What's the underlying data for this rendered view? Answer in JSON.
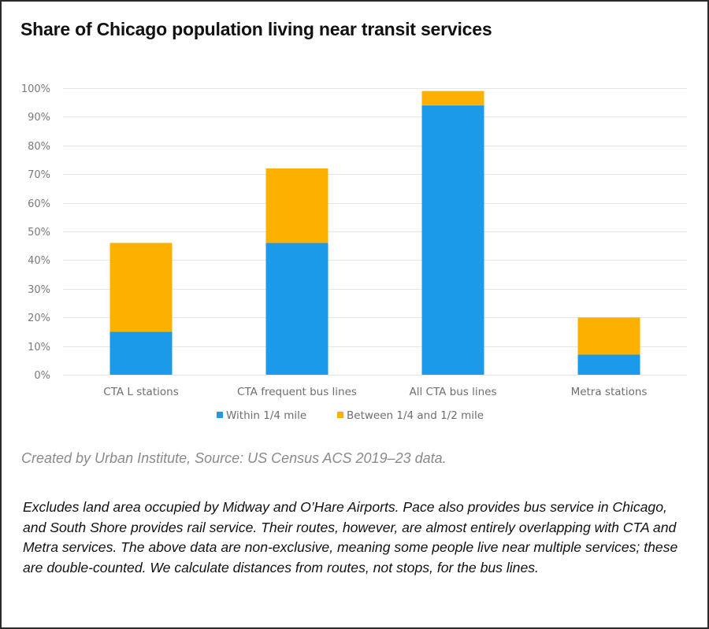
{
  "title": "Share of Chicago population living near transit services",
  "source": "Created by Urban Institute, Source: US Census ACS 2019–23 data.",
  "note": "Excludes land area occupied by Midway and O’Hare Airports. Pace also provides bus service in Chicago, and South Shore provides rail service. Their routes, however, are almost entirely overlapping with CTA and Metra services. The above data are non-exclusive, meaning some people live near multiple services; these are double-counted. We calculate distances from routes, not stops, for the bus lines.",
  "colors": {
    "within": "#1a9ae8",
    "between": "#fcb100",
    "grid": "#e6e6e6"
  },
  "chart_data": {
    "type": "bar",
    "stacked": true,
    "title": "Share of Chicago population living near transit services",
    "xlabel": "",
    "ylabel": "",
    "categories": [
      "CTA L stations",
      "CTA frequent bus lines",
      "All CTA bus lines",
      "Metra stations"
    ],
    "series": [
      {
        "name": "Within 1/4 mile",
        "values": [
          15,
          46,
          94,
          7
        ]
      },
      {
        "name": "Between 1/4 and 1/2 mile",
        "values": [
          31,
          26,
          5,
          13
        ]
      }
    ],
    "ylim": [
      0,
      100
    ],
    "yticks": [
      0,
      10,
      20,
      30,
      40,
      50,
      60,
      70,
      80,
      90,
      100
    ],
    "ytick_labels": [
      "0%",
      "10%",
      "20%",
      "30%",
      "40%",
      "50%",
      "60%",
      "70%",
      "80%",
      "90%",
      "100%"
    ],
    "grid": true,
    "legend_position": "bottom-center"
  }
}
